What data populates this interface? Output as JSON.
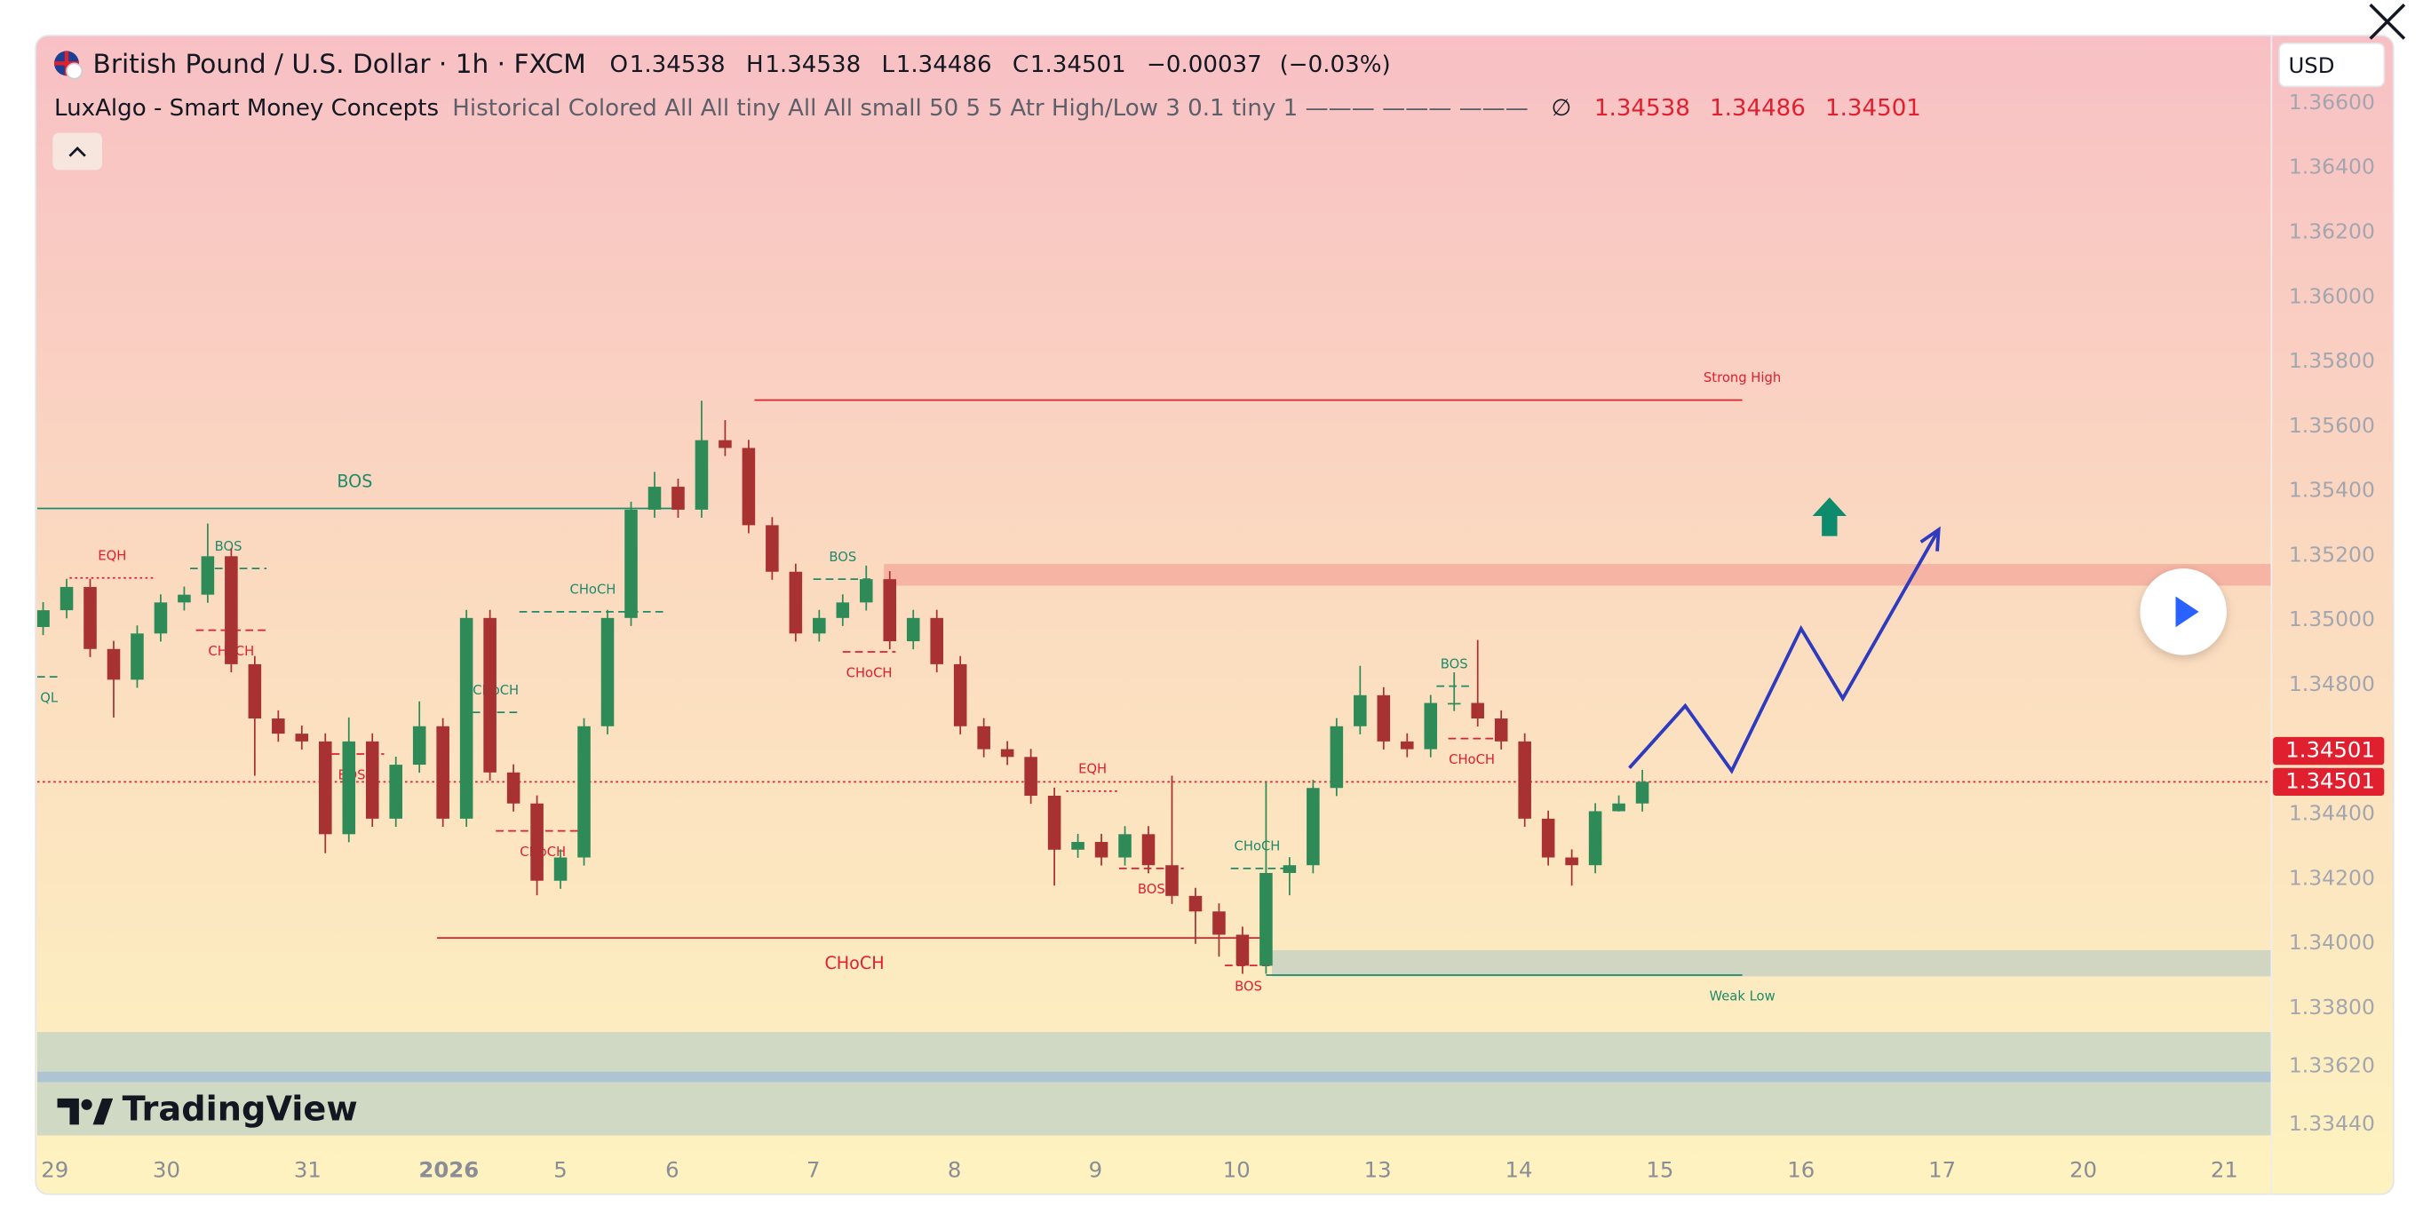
{
  "chart_data": {
    "type": "candlestick",
    "title": "British Pound / U.S. Dollar · 1h · FXCM",
    "ohlc_labels": [
      "O",
      "H",
      "L",
      "C"
    ],
    "ohlc": [
      1.34538,
      1.34538,
      1.34486,
      1.34501
    ],
    "change": {
      "value": -0.00037,
      "label": "−0.00037"
    },
    "change_percent": {
      "value": -0.03,
      "label": "(−0.03%)"
    },
    "indicator": {
      "name": "LuxAlgo - Smart Money Concepts",
      "params": "Historical Colored All All tiny All All small 50 5 5 Atr High/Low 3 0.1 tiny 1 ——— ——— ———",
      "symbol": "∅",
      "values": [
        1.34538,
        1.34486,
        1.34501
      ]
    },
    "currency": "USD",
    "brand": "TradingView",
    "up_color": "#2e8b57",
    "down_color": "#a83232",
    "x": [
      1,
      5,
      9,
      13,
      17,
      21,
      25,
      29,
      33,
      37,
      41,
      45,
      49,
      53,
      57,
      61,
      65,
      69,
      73,
      77,
      81,
      85,
      89,
      93,
      97,
      101,
      105,
      109,
      113,
      117,
      121,
      125,
      129,
      133,
      137,
      141,
      145,
      149,
      153,
      157,
      161,
      165,
      169,
      173,
      177,
      181,
      185,
      189,
      193,
      197,
      201,
      205,
      209,
      213,
      217,
      221,
      225,
      229,
      233,
      237,
      241,
      245,
      249,
      253,
      257,
      261,
      265,
      269,
      273
    ],
    "open": [
      1.3498,
      1.35032,
      1.35104,
      1.34912,
      1.34817,
      1.3496,
      1.35056,
      1.3508,
      1.35199,
      1.34865,
      1.34697,
      1.3465,
      1.34626,
      1.34339,
      1.34626,
      1.34387,
      1.34554,
      1.34673,
      1.34387,
      1.35008,
      1.3453,
      1.34434,
      1.34195,
      1.34267,
      1.34673,
      1.35008,
      1.35343,
      1.35414,
      1.35343,
      1.35558,
      1.35534,
      1.35295,
      1.35151,
      1.3496,
      1.35008,
      1.35056,
      1.35128,
      1.34936,
      1.35008,
      1.34865,
      1.34673,
      1.34602,
      1.34578,
      1.34458,
      1.34291,
      1.34315,
      1.34267,
      1.34339,
      1.34243,
      1.34148,
      1.341,
      1.34028,
      1.33932,
      1.34219,
      1.34243,
      1.34482,
      1.34673,
      1.34769,
      1.34626,
      1.34602,
      1.34745,
      1.34745,
      1.34697,
      1.34626,
      1.34387,
      1.34267,
      1.34243,
      1.3441,
      1.34434
    ],
    "high": [
      1.35057,
      1.35129,
      1.35129,
      1.34937,
      1.34985,
      1.35081,
      1.35105,
      1.353,
      1.35224,
      1.3489,
      1.34722,
      1.34675,
      1.34651,
      1.347,
      1.34651,
      1.34579,
      1.3475,
      1.34698,
      1.35033,
      1.35033,
      1.34555,
      1.34459,
      1.34292,
      1.34698,
      1.35033,
      1.35368,
      1.3546,
      1.35439,
      1.3568,
      1.3562,
      1.35559,
      1.3532,
      1.35176,
      1.35033,
      1.35081,
      1.3517,
      1.35153,
      1.35033,
      1.35033,
      1.3489,
      1.34698,
      1.34627,
      1.34603,
      1.34483,
      1.3434,
      1.3434,
      1.34364,
      1.34364,
      1.3452,
      1.34173,
      1.34125,
      1.34053,
      1.345,
      1.34268,
      1.34507,
      1.34698,
      1.3486,
      1.34794,
      1.34651,
      1.3477,
      1.3484,
      1.3494,
      1.34722,
      1.34651,
      1.34412,
      1.34292,
      1.34435,
      1.34459,
      1.34538
    ],
    "low": [
      1.34955,
      1.35007,
      1.34887,
      1.347,
      1.34792,
      1.34935,
      1.35031,
      1.35055,
      1.3484,
      1.3452,
      1.34625,
      1.34601,
      1.3428,
      1.34314,
      1.34362,
      1.34362,
      1.34529,
      1.34362,
      1.34362,
      1.34505,
      1.34409,
      1.3415,
      1.3417,
      1.34242,
      1.34648,
      1.34983,
      1.35318,
      1.35318,
      1.35318,
      1.35509,
      1.3527,
      1.35126,
      1.34935,
      1.34935,
      1.34983,
      1.35031,
      1.34911,
      1.34911,
      1.3484,
      1.34648,
      1.34577,
      1.34553,
      1.34433,
      1.3418,
      1.34266,
      1.34242,
      1.34242,
      1.34218,
      1.34123,
      1.34,
      1.3396,
      1.33907,
      1.33907,
      1.3415,
      1.34218,
      1.34457,
      1.34648,
      1.34601,
      1.34577,
      1.34577,
      1.3472,
      1.34672,
      1.34601,
      1.34362,
      1.34242,
      1.3418,
      1.34218,
      1.34409,
      1.34409
    ],
    "close": [
      1.35032,
      1.35104,
      1.34912,
      1.34817,
      1.3496,
      1.35056,
      1.3508,
      1.35199,
      1.34865,
      1.34697,
      1.3465,
      1.34626,
      1.34339,
      1.34626,
      1.34387,
      1.34554,
      1.34673,
      1.34387,
      1.35008,
      1.3453,
      1.34434,
      1.34195,
      1.34267,
      1.34673,
      1.35008,
      1.35343,
      1.35414,
      1.35343,
      1.35558,
      1.35534,
      1.35295,
      1.35151,
      1.3496,
      1.35008,
      1.35056,
      1.35128,
      1.34936,
      1.35008,
      1.34865,
      1.34673,
      1.34602,
      1.34578,
      1.34458,
      1.34291,
      1.34315,
      1.34267,
      1.34339,
      1.34243,
      1.34148,
      1.341,
      1.34028,
      1.33932,
      1.34219,
      1.34243,
      1.34482,
      1.34673,
      1.34769,
      1.34626,
      1.34602,
      1.34745,
      1.34745,
      1.34697,
      1.34626,
      1.34387,
      1.34267,
      1.34243,
      1.3441,
      1.34434,
      1.34501
    ],
    "xlim": [
      0,
      380
    ],
    "ylim": [
      1.33359,
      1.3681
    ],
    "grid": false,
    "xticks": [
      {
        "value": 3,
        "label": "29"
      },
      {
        "value": 22,
        "label": "30"
      },
      {
        "value": 46,
        "label": "31"
      },
      {
        "value": 70,
        "label": "2026"
      },
      {
        "value": 89,
        "label": "5"
      },
      {
        "value": 108,
        "label": "6"
      },
      {
        "value": 132,
        "label": "7"
      },
      {
        "value": 156,
        "label": "8"
      },
      {
        "value": 180,
        "label": "9"
      },
      {
        "value": 204,
        "label": "10"
      },
      {
        "value": 228,
        "label": "13"
      },
      {
        "value": 252,
        "label": "14"
      },
      {
        "value": 276,
        "label": "15"
      },
      {
        "value": 300,
        "label": "16"
      },
      {
        "value": 324,
        "label": "17"
      },
      {
        "value": 348,
        "label": "20"
      },
      {
        "value": 372,
        "label": "21"
      }
    ],
    "yticks": [
      {
        "value": 1.366,
        "label": "1.36600"
      },
      {
        "value": 1.364,
        "label": "1.36400"
      },
      {
        "value": 1.362,
        "label": "1.36200"
      },
      {
        "value": 1.36,
        "label": "1.36000"
      },
      {
        "value": 1.358,
        "label": "1.35800"
      },
      {
        "value": 1.356,
        "label": "1.35600"
      },
      {
        "value": 1.354,
        "label": "1.35400"
      },
      {
        "value": 1.352,
        "label": "1.35200"
      },
      {
        "value": 1.35,
        "label": "1.35000"
      },
      {
        "value": 1.348,
        "label": "1.34800"
      },
      {
        "value": 1.344,
        "label": "1.34400"
      },
      {
        "value": 1.342,
        "label": "1.34200"
      },
      {
        "value": 1.34,
        "label": "1.34000"
      },
      {
        "value": 1.338,
        "label": "1.33800"
      },
      {
        "value": 1.3362,
        "label": "1.33620"
      },
      {
        "value": 1.3344,
        "label": "1.33440"
      }
    ],
    "price_line": {
      "value": 1.34501,
      "color": "#e0202f"
    },
    "zones": [
      {
        "levels": [
          1.35108,
          1.35175
        ],
        "x": [
          144,
          380
        ],
        "color": "#f5ad9f"
      },
      {
        "levels": [
          1.33899,
          1.3398
        ],
        "x": [
          210,
          380
        ],
        "color": "#c8d2c2"
      },
      {
        "levels": [
          1.33407,
          1.33727
        ],
        "x": [
          0,
          380
        ],
        "color": "#c8d5c3"
      },
      {
        "levels": [
          1.33572,
          1.33604
        ],
        "x": [
          0,
          380
        ],
        "color": "#a9c0d6"
      }
    ],
    "structures": [
      {
        "text": "BOS",
        "level": 1.35347,
        "x": [
          0,
          108
        ],
        "color": "#1f8a6a",
        "style": "solid",
        "label_pos": "above",
        "size": "normal"
      },
      {
        "text": "EQH",
        "level": 1.35132,
        "x": [
          5.5,
          20
        ],
        "color": "#e0202f",
        "style": "dotted",
        "label_pos": "above",
        "size": "small"
      },
      {
        "text": "BOS",
        "level": 1.35161,
        "x": [
          26,
          39
        ],
        "color": "#1f8a6a",
        "style": "dashed",
        "label_pos": "above",
        "size": "small"
      },
      {
        "text": "CHoCH",
        "level": 1.3497,
        "x": [
          27,
          39
        ],
        "color": "#e0202f",
        "style": "dashed",
        "label_pos": "below",
        "size": "small"
      },
      {
        "text": "QL",
        "level": 1.34826,
        "x": [
          0,
          4
        ],
        "color": "#1f8a6a",
        "style": "dashed",
        "label_pos": "below",
        "size": "small"
      },
      {
        "text": "BOS",
        "level": 1.34587,
        "x": [
          48,
          59
        ],
        "color": "#e0202f",
        "style": "dashed",
        "label_pos": "below",
        "size": "small"
      },
      {
        "text": "CHoCH",
        "level": 1.34716,
        "x": [
          74,
          82
        ],
        "color": "#1f8a6a",
        "style": "dashed",
        "label_pos": "above",
        "size": "small"
      },
      {
        "text": "CHoCH",
        "level": 1.35027,
        "x": [
          82,
          107
        ],
        "color": "#1f8a6a",
        "style": "dashed",
        "label_pos": "above",
        "size": "small"
      },
      {
        "text": "CHoCH",
        "level": 1.34349,
        "x": [
          78,
          94
        ],
        "color": "#e0202f",
        "style": "dashed",
        "label_pos": "below",
        "size": "small"
      },
      {
        "text": "BOS",
        "level": 1.35128,
        "x": [
          132,
          142
        ],
        "color": "#1f8a6a",
        "style": "dashed",
        "label_pos": "above",
        "size": "small"
      },
      {
        "text": "CHoCH",
        "level": 1.34903,
        "x": [
          137,
          146
        ],
        "color": "#e0202f",
        "style": "dashed",
        "label_pos": "below",
        "size": "small"
      },
      {
        "text": "EQH",
        "level": 1.34472,
        "x": [
          175,
          184
        ],
        "color": "#e0202f",
        "style": "dotted",
        "label_pos": "above",
        "size": "small"
      },
      {
        "text": "BOS",
        "level": 1.34233,
        "x": [
          184,
          195
        ],
        "color": "#e0202f",
        "style": "dashed",
        "label_pos": "below",
        "size": "small"
      },
      {
        "text": "CHoCH",
        "level": 1.34233,
        "x": [
          203,
          212
        ],
        "color": "#1f8a6a",
        "style": "dashed",
        "label_pos": "above",
        "size": "small"
      },
      {
        "text": "BOS",
        "level": 1.33933,
        "x": [
          202,
          210
        ],
        "color": "#e0202f",
        "style": "dashed",
        "label_pos": "below",
        "size": "small"
      },
      {
        "text": "CHoCH",
        "level": 1.34018,
        "x": [
          68,
          210
        ],
        "color": "#e0202f",
        "style": "solid",
        "label_pos": "below",
        "size": "normal"
      },
      {
        "text": "BOS",
        "level": 1.34797,
        "x": [
          238,
          244
        ],
        "color": "#1f8a6a",
        "style": "dashed",
        "label_pos": "above",
        "size": "small"
      },
      {
        "text": "CHoCH",
        "level": 1.34635,
        "x": [
          240,
          248
        ],
        "color": "#e0202f",
        "style": "dashed",
        "label_pos": "below",
        "size": "small"
      },
      {
        "text": "Strong High",
        "level": 1.35682,
        "x": [
          122,
          290
        ],
        "color": "#e0202f",
        "style": "solid",
        "label_pos": "above",
        "size": "small",
        "label_x": "end"
      },
      {
        "text": "Weak Low",
        "level": 1.33903,
        "x": [
          209,
          290
        ],
        "color": "#1f8a6a",
        "style": "solid",
        "label_pos": "below",
        "size": "small",
        "label_x": "end"
      }
    ],
    "projection": {
      "x": [
        270.8,
        280.3,
        288.2,
        300,
        307.1,
        323.4
      ],
      "y": [
        1.34544,
        1.34736,
        1.34535,
        1.34975,
        1.34759,
        1.35281
      ],
      "color": "#2f3bbf"
    }
  }
}
